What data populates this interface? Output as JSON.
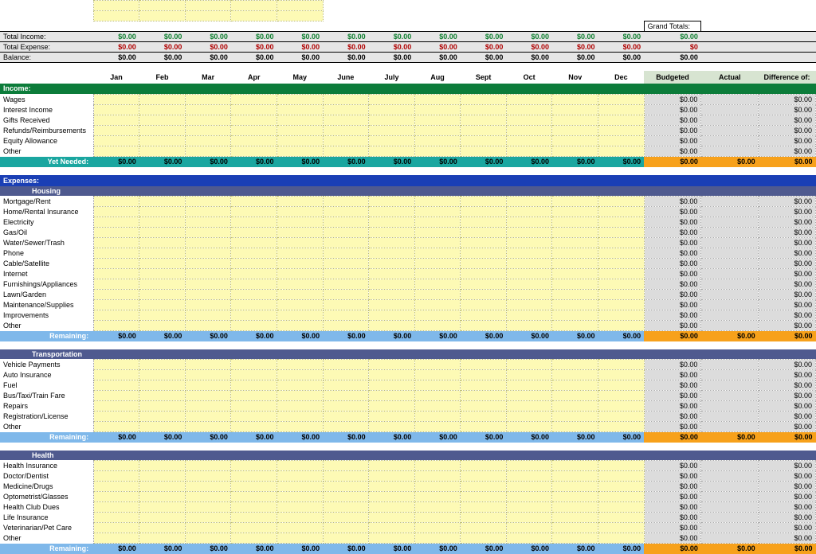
{
  "months": [
    "Jan",
    "Feb",
    "Mar",
    "Apr",
    "May",
    "June",
    "July",
    "Aug",
    "Sept",
    "Oct",
    "Nov",
    "Dec"
  ],
  "summary_cols": {
    "budgeted": "Budgeted",
    "actual": "Actual",
    "diff": "Difference of:"
  },
  "grand_totals_label": "Grand Totals:",
  "totals": {
    "income": {
      "label": "Total Income:",
      "months": [
        "$0.00",
        "$0.00",
        "$0.00",
        "$0.00",
        "$0.00",
        "$0.00",
        "$0.00",
        "$0.00",
        "$0.00",
        "$0.00",
        "$0.00",
        "$0.00"
      ],
      "grand": "$0.00"
    },
    "expense": {
      "label": "Total Expense:",
      "months": [
        "$0.00",
        "$0.00",
        "$0.00",
        "$0.00",
        "$0.00",
        "$0.00",
        "$0.00",
        "$0.00",
        "$0.00",
        "$0.00",
        "$0.00",
        "$0.00"
      ],
      "grand": "$0"
    },
    "balance": {
      "label": "Balance:",
      "months": [
        "$0.00",
        "$0.00",
        "$0.00",
        "$0.00",
        "$0.00",
        "$0.00",
        "$0.00",
        "$0.00",
        "$0.00",
        "$0.00",
        "$0.00",
        "$0.00"
      ],
      "grand": "$0.00"
    }
  },
  "income": {
    "title": "Income:",
    "items": [
      "Wages",
      "Interest Income",
      "Gifts Received",
      "Refunds/Reimbursements",
      "Equity Allowance",
      "Other"
    ],
    "yet_needed_label": "Yet Needed:",
    "yet_needed": [
      "$0.00",
      "$0.00",
      "$0.00",
      "$0.00",
      "$0.00",
      "$0.00",
      "$0.00",
      "$0.00",
      "$0.00",
      "$0.00",
      "$0.00",
      "$0.00"
    ],
    "yet_needed_summary": [
      "$0.00",
      "$0.00",
      "$0.00"
    ]
  },
  "expenses_title": "Expenses:",
  "groups": [
    {
      "title": "Housing",
      "items": [
        "Mortgage/Rent",
        "Home/Rental Insurance",
        "Electricity",
        "Gas/Oil",
        "Water/Sewer/Trash",
        "Phone",
        "Cable/Satellite",
        "Internet",
        "Furnishings/Appliances",
        "Lawn/Garden",
        "Maintenance/Supplies",
        "Improvements",
        "Other"
      ]
    },
    {
      "title": "Transportation",
      "items": [
        "Vehicle Payments",
        "Auto Insurance",
        "Fuel",
        "Bus/Taxi/Train Fare",
        "Repairs",
        "Registration/License",
        "Other"
      ]
    },
    {
      "title": "Health",
      "items": [
        "Health Insurance",
        "Doctor/Dentist",
        "Medicine/Drugs",
        "Optometrist/Glasses",
        "Health Club Dues",
        "Life Insurance",
        "Veterinarian/Pet Care",
        "Other"
      ]
    }
  ],
  "remaining_label": "Remaining:",
  "remaining_months": [
    "$0.00",
    "$0.00",
    "$0.00",
    "$0.00",
    "$0.00",
    "$0.00",
    "$0.00",
    "$0.00",
    "$0.00",
    "$0.00",
    "$0.00",
    "$0.00"
  ],
  "remaining_summary": [
    "$0.00",
    "$0.00",
    "$0.00"
  ],
  "item_summary": [
    "$0.00",
    "",
    "$0.00"
  ],
  "colors": {
    "yellow": "#fdfab5",
    "income_green": "#0c7c3a",
    "expense_blue": "#1a3fb5",
    "subhead": "#4f5a8f",
    "teal": "#1aa6a0",
    "lightblue": "#7fb8ea",
    "orange": "#f7a11b",
    "grey": "#dcdcdc",
    "head_green": "#d7e4d1",
    "inc_text": "#0a7d2c",
    "exp_text": "#b00000"
  }
}
